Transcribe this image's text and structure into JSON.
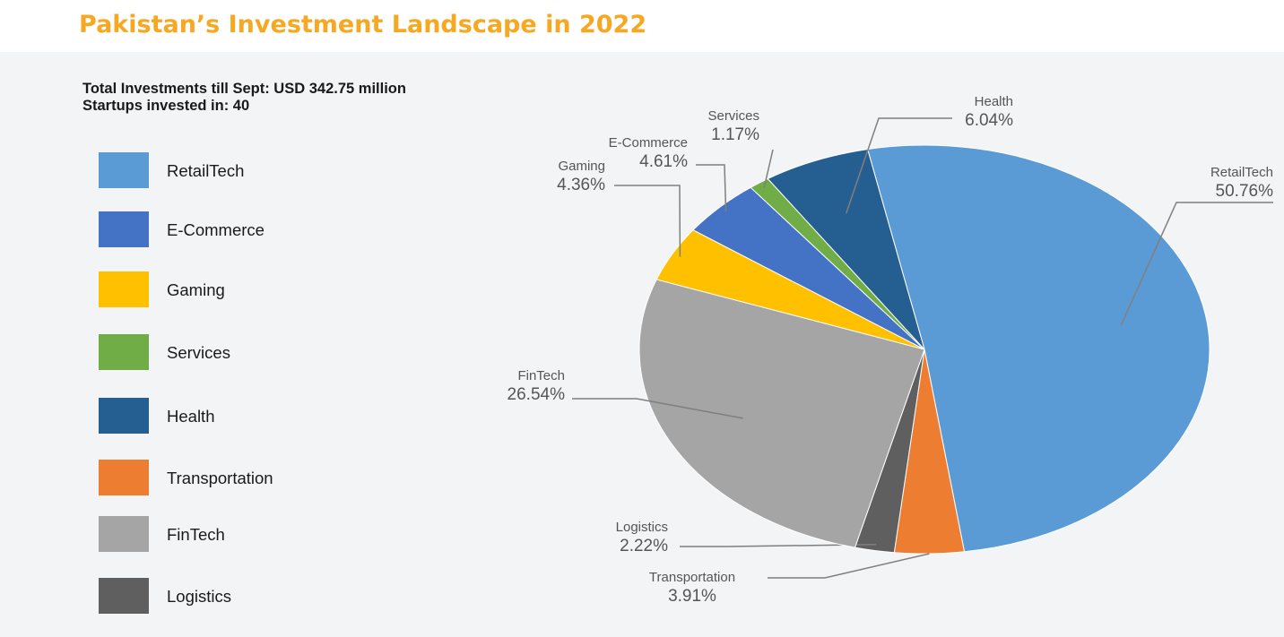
{
  "header": {
    "title": "Pakistan’s Investment Landscape in 2022"
  },
  "summary": {
    "line1": "Total Investments till Sept: USD 342.75 million",
    "line2": "Startups invested in: 40"
  },
  "chart_data": {
    "type": "pie",
    "slices": [
      {
        "name": "RetailTech",
        "value": 50.76,
        "label": "50.76%",
        "color": "#5b9bd5"
      },
      {
        "name": "Transportation",
        "value": 3.91,
        "label": "3.91%",
        "color": "#ed7d31"
      },
      {
        "name": "Logistics",
        "value": 2.22,
        "label": "2.22%",
        "color": "#5f5f5f"
      },
      {
        "name": "FinTech",
        "value": 26.54,
        "label": "26.54%",
        "color": "#a5a5a5"
      },
      {
        "name": "Gaming",
        "value": 4.36,
        "label": "4.36%",
        "color": "#ffc000"
      },
      {
        "name": "E-Commerce",
        "value": 4.61,
        "label": "4.61%",
        "color": "#4472c4"
      },
      {
        "name": "Services",
        "value": 1.17,
        "label": "1.17%",
        "color": "#70ad47"
      },
      {
        "name": "Health",
        "value": 6.04,
        "label": "6.04%",
        "color": "#255e91"
      }
    ],
    "legend": [
      {
        "name": "RetailTech",
        "color": "#5b9bd5"
      },
      {
        "name": "E-Commerce",
        "color": "#4472c4"
      },
      {
        "name": "Gaming",
        "color": "#ffc000"
      },
      {
        "name": "Services",
        "color": "#70ad47"
      },
      {
        "name": "Health",
        "color": "#255e91"
      },
      {
        "name": "Transportation",
        "color": "#ed7d31"
      },
      {
        "name": "FinTech",
        "color": "#a5a5a5"
      },
      {
        "name": "Logistics",
        "color": "#5f5f5f"
      }
    ],
    "legend_placement": "left"
  }
}
